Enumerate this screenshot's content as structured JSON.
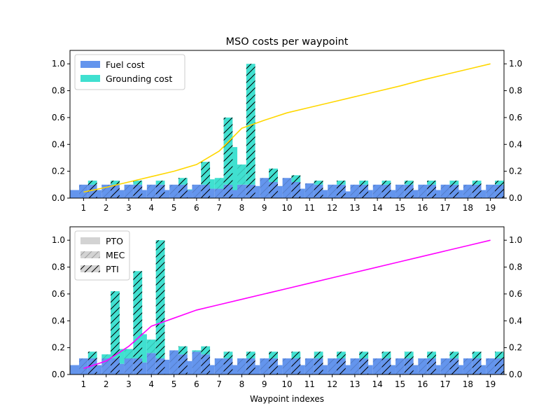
{
  "figure": {
    "title": "MSO costs per waypoint",
    "xlabel": "Waypoint indexes"
  },
  "colors": {
    "fuel": "#6495ED",
    "grounding": "#40E0D0",
    "line_top": "#FFD700",
    "line_bottom": "#FF00FF",
    "legend_swatch": "#D3D3D3"
  },
  "chart_data": [
    {
      "type": "bar",
      "title": "MSO costs per waypoint",
      "xlabel": "",
      "ylabel": "",
      "stacked": true,
      "grouped_by": [
        "PTO",
        "MEC",
        "PTI"
      ],
      "categories": [
        "1",
        "2",
        "3",
        "4",
        "5",
        "6",
        "7",
        "8",
        "9",
        "10",
        "11",
        "12",
        "13",
        "14",
        "15",
        "16",
        "17",
        "18",
        "19"
      ],
      "ylim": [
        0,
        1.1
      ],
      "yticks": [
        "0.0",
        "0.2",
        "0.4",
        "0.6",
        "0.8",
        "1.0"
      ],
      "legend": {
        "placement": "top-left",
        "entries": [
          "Fuel cost",
          "Grounding cost"
        ]
      },
      "series": [
        {
          "name": "Fuel cost",
          "group": "PTO",
          "values": [
            0.06,
            0.06,
            0.06,
            0.06,
            0.06,
            0.06,
            0.07,
            0.06,
            0.09,
            0.09,
            0.07,
            0.06,
            0.05,
            0.06,
            0.06,
            0.06,
            0.06,
            0.06,
            0.06
          ]
        },
        {
          "name": "Grounding cost",
          "group": "PTO",
          "values": [
            0,
            0,
            0,
            0,
            0,
            0.005,
            0.07,
            0.32,
            0,
            0,
            0,
            0,
            0,
            0,
            0,
            0,
            0,
            0,
            0
          ]
        },
        {
          "name": "Fuel cost",
          "group": "MEC",
          "values": [
            0.1,
            0.1,
            0.1,
            0.1,
            0.1,
            0.1,
            0.07,
            0.1,
            0.15,
            0.15,
            0.11,
            0.1,
            0.1,
            0.1,
            0.1,
            0.1,
            0.1,
            0.1,
            0.1
          ]
        },
        {
          "name": "Grounding cost",
          "group": "MEC",
          "values": [
            0,
            0,
            0,
            0,
            0,
            0,
            0.08,
            0.15,
            0,
            0,
            0,
            0,
            0,
            0,
            0,
            0,
            0,
            0,
            0
          ]
        },
        {
          "name": "Fuel cost",
          "group": "PTI",
          "values": [
            0.1,
            0.1,
            0.1,
            0.1,
            0.1,
            0.1,
            0.1,
            0.1,
            0.12,
            0.12,
            0.1,
            0.1,
            0.1,
            0.1,
            0.1,
            0.1,
            0.1,
            0.1,
            0.1
          ]
        },
        {
          "name": "Grounding cost",
          "group": "PTI",
          "values": [
            0.03,
            0.03,
            0.03,
            0.03,
            0.05,
            0.17,
            0.5,
            0.9,
            0.1,
            0.05,
            0.03,
            0.03,
            0.03,
            0.03,
            0.03,
            0.03,
            0.03,
            0.03,
            0.03
          ]
        }
      ],
      "secondary_axis": {
        "ylim": [
          0,
          1.1
        ],
        "yticks": [
          "0.0",
          "0.2",
          "0.4",
          "0.6",
          "0.8",
          "1.0"
        ],
        "line": [
          0.045,
          0.08,
          0.12,
          0.16,
          0.2,
          0.25,
          0.35,
          0.52,
          0.58,
          0.635,
          0.675,
          0.715,
          0.755,
          0.795,
          0.835,
          0.88,
          0.92,
          0.96,
          1.0
        ]
      }
    },
    {
      "type": "bar",
      "title": "",
      "xlabel": "Waypoint indexes",
      "ylabel": "",
      "stacked": true,
      "grouped_by": [
        "PTO",
        "MEC",
        "PTI"
      ],
      "categories": [
        "1",
        "2",
        "3",
        "4",
        "5",
        "6",
        "7",
        "8",
        "9",
        "10",
        "11",
        "12",
        "13",
        "14",
        "15",
        "16",
        "17",
        "18",
        "19"
      ],
      "ylim": [
        0,
        1.1
      ],
      "yticks": [
        "0.0",
        "0.2",
        "0.4",
        "0.6",
        "0.8",
        "1.0"
      ],
      "legend": {
        "placement": "top-left",
        "entries": [
          "PTO",
          "MEC",
          "PTI"
        ]
      },
      "series": [
        {
          "name": "Fuel cost",
          "group": "PTO",
          "values": [
            0.07,
            0.07,
            0.08,
            0.09,
            0.11,
            0.1,
            0.07,
            0.07,
            0.07,
            0.07,
            0.07,
            0.07,
            0.07,
            0.07,
            0.07,
            0.07,
            0.07,
            0.07,
            0.07
          ]
        },
        {
          "name": "Grounding cost",
          "group": "PTO",
          "values": [
            0,
            0,
            0.11,
            0.21,
            0,
            0,
            0,
            0,
            0,
            0,
            0,
            0,
            0,
            0,
            0,
            0,
            0,
            0,
            0
          ]
        },
        {
          "name": "Fuel cost",
          "group": "MEC",
          "values": [
            0.12,
            0.12,
            0.12,
            0.16,
            0.18,
            0.17,
            0.12,
            0.12,
            0.12,
            0.12,
            0.12,
            0.12,
            0.12,
            0.12,
            0.12,
            0.12,
            0.12,
            0.12,
            0.12
          ]
        },
        {
          "name": "Grounding cost",
          "group": "MEC",
          "values": [
            0,
            0.03,
            0.07,
            0.1,
            0,
            0.01,
            0,
            0,
            0,
            0,
            0,
            0,
            0,
            0,
            0,
            0,
            0,
            0,
            0
          ]
        },
        {
          "name": "Fuel cost",
          "group": "PTI",
          "values": [
            0.12,
            0.12,
            0.12,
            0.12,
            0.15,
            0.15,
            0.12,
            0.12,
            0.12,
            0.12,
            0.12,
            0.12,
            0.12,
            0.12,
            0.12,
            0.12,
            0.12,
            0.12,
            0.12
          ]
        },
        {
          "name": "Grounding cost",
          "group": "PTI",
          "values": [
            0.05,
            0.5,
            0.65,
            0.88,
            0.06,
            0.06,
            0.05,
            0.05,
            0.05,
            0.05,
            0.05,
            0.05,
            0.05,
            0.05,
            0.05,
            0.05,
            0.05,
            0.05,
            0.05
          ]
        }
      ],
      "secondary_axis": {
        "ylim": [
          0,
          1.1
        ],
        "yticks": [
          "0.0",
          "0.2",
          "0.4",
          "0.6",
          "0.8",
          "1.0"
        ],
        "line": [
          0.045,
          0.1,
          0.21,
          0.36,
          0.42,
          0.48,
          0.52,
          0.56,
          0.6,
          0.64,
          0.68,
          0.72,
          0.76,
          0.8,
          0.84,
          0.88,
          0.92,
          0.96,
          1.0
        ]
      }
    }
  ]
}
